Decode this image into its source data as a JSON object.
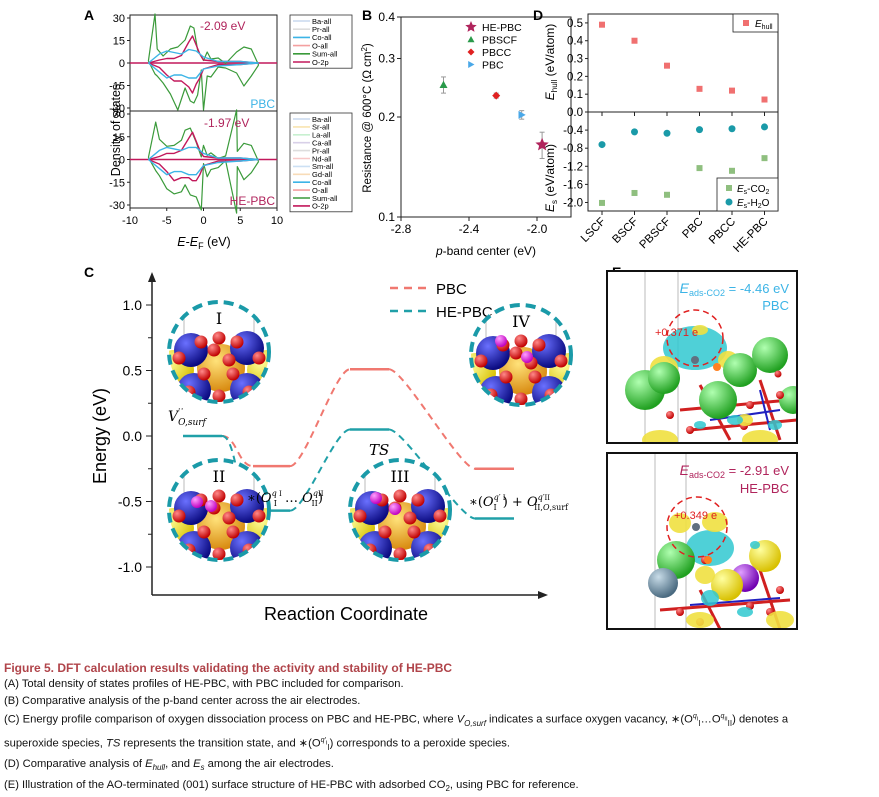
{
  "colors": {
    "pbc_light_blue": "#3cb4e6",
    "he_pbc_magenta": "#b0245c",
    "sum_green": "#3a9a3a",
    "o2p_crimson": "#c2185b",
    "ehull_red": "#f07070",
    "es_co2_green": "#8fbf7f",
    "es_h2o_teal": "#1a9aa8",
    "profile_pbc": "#f07870",
    "profile_he_pbc": "#20a0a8",
    "caption_title": "#b0444a"
  },
  "chart_data": [
    {
      "panel": "A",
      "type": "line",
      "title": "",
      "xlabel": "E-E_F (eV)",
      "ylabel": "Density of states",
      "xlim": [
        -10,
        10
      ],
      "ylim": [
        -30,
        30
      ],
      "xticks": [
        "-10",
        "-5",
        "0",
        "5",
        "10"
      ],
      "yticks": [
        "30",
        "15",
        "0",
        "-15",
        "-30"
      ],
      "subplots": [
        {
          "name": "PBC",
          "pband_annotation": "-2.09 eV",
          "legend": [
            "Ba-all",
            "Pr-all",
            "Co-all",
            "O-all",
            "Sum-all",
            "O-2p"
          ],
          "series": [
            {
              "name": "Sum-all",
              "x": [
                -7.5,
                -6.6,
                -6.3,
                -5.5,
                -4.5,
                -3.5,
                -2.5,
                -1.8,
                -1.3,
                -0.8,
                -0.3,
                0,
                0.5,
                1,
                2,
                3,
                4.5,
                5.5,
                6.5,
                7.5
              ],
              "up": [
                0,
                34,
                8,
                6,
                8,
                12,
                14,
                26,
                22,
                10,
                3,
                3,
                6,
                4,
                2,
                1,
                6,
                12,
                8,
                0
              ],
              "down": [
                0,
                -6,
                -10,
                -12,
                -22,
                -30,
                -18,
                -24,
                -28,
                -20,
                -6,
                -30,
                -10,
                -8,
                -4,
                -2,
                -8,
                -14,
                -10,
                0
              ]
            },
            {
              "name": "O-2p",
              "x": [
                -7.5,
                -6,
                -5,
                -4,
                -3,
                -2,
                -1.5,
                -1,
                -0.5,
                0,
                2,
                5,
                7.5
              ],
              "up": [
                0,
                2,
                3,
                3,
                5,
                14,
                18,
                12,
                6,
                2,
                1,
                1,
                0
              ],
              "down": [
                0,
                -3,
                -8,
                -12,
                -12,
                -16,
                -20,
                -14,
                -10,
                -4,
                -1,
                -1,
                0
              ]
            },
            {
              "name": "Co-all",
              "x": [
                -7.5,
                -6,
                -5,
                -4,
                -3,
                -2,
                -1,
                0,
                2,
                5,
                7.5
              ],
              "up": [
                0,
                6,
                8,
                7,
                6,
                9,
                8,
                4,
                1,
                1,
                0
              ],
              "down": [
                0,
                -6,
                -10,
                -8,
                -8,
                -10,
                -10,
                -4,
                -2,
                -1,
                0
              ]
            }
          ]
        },
        {
          "name": "HE-PBC",
          "pband_annotation": "-1.97 eV",
          "legend": [
            "Ba-all",
            "Sr-all",
            "La-all",
            "Ca-all",
            "Pr-all",
            "Nd-all",
            "Sm-all",
            "Gd-all",
            "Co-all",
            "O-all",
            "Sum-all",
            "O-2p"
          ],
          "series": [
            {
              "name": "Sum-all",
              "x": [
                -7.5,
                -6.5,
                -6,
                -5,
                -4,
                -3,
                -2.5,
                -1.8,
                -1,
                -0.3,
                0,
                0.5,
                1,
                2,
                3,
                4.5,
                4.6,
                5.5,
                6.5,
                7.5
              ],
              "up": [
                0,
                26,
                12,
                10,
                8,
                14,
                18,
                22,
                10,
                3,
                8,
                4,
                3,
                2,
                1,
                34,
                4,
                12,
                8,
                0
              ],
              "down": [
                0,
                -6,
                -12,
                -18,
                -24,
                -20,
                -18,
                -22,
                -26,
                -32,
                -4,
                -10,
                -8,
                -4,
                -2,
                -34,
                -6,
                -12,
                -10,
                0
              ]
            },
            {
              "name": "O-2p",
              "x": [
                -7.5,
                -6,
                -5,
                -4,
                -3,
                -2,
                -1.5,
                -1,
                -0.5,
                0,
                2,
                5,
                7.5
              ],
              "up": [
                0,
                2,
                4,
                4,
                6,
                14,
                18,
                12,
                6,
                2,
                1,
                1,
                0
              ],
              "down": [
                0,
                -3,
                -8,
                -14,
                -12,
                -12,
                -14,
                -14,
                -10,
                -4,
                -1,
                -1,
                0
              ]
            },
            {
              "name": "Co-all",
              "x": [
                -7.5,
                -6,
                -5,
                -4,
                -3,
                -2,
                -1,
                0,
                2,
                5,
                7.5
              ],
              "up": [
                0,
                6,
                8,
                7,
                6,
                8,
                8,
                4,
                1,
                1,
                0
              ],
              "down": [
                0,
                -6,
                -10,
                -8,
                -8,
                -10,
                -10,
                -4,
                -2,
                -1,
                0
              ]
            }
          ]
        }
      ]
    },
    {
      "panel": "B",
      "type": "scatter",
      "xlabel": "p-band center (eV)",
      "ylabel": "Resistance @ 600°C (Ω cm²)",
      "xlim": [
        -2.8,
        -1.8
      ],
      "ylim": [
        0.1,
        0.4
      ],
      "yscale": "log",
      "xticks": [
        "-2.8",
        "-2.4",
        "-2.0"
      ],
      "yticks": [
        "0.4",
        "0.3",
        "0.2",
        "0.1"
      ],
      "legend_position": "top-right",
      "points": [
        {
          "name": "HE-PBC",
          "x": -1.97,
          "y": 0.165,
          "err": 0.015,
          "marker": "star"
        },
        {
          "name": "PBSCF",
          "x": -2.55,
          "y": 0.25,
          "err": 0.014,
          "marker": "triangle-up"
        },
        {
          "name": "PBCC",
          "x": -2.24,
          "y": 0.232,
          "err": 0.004,
          "marker": "diamond"
        },
        {
          "name": "PBC",
          "x": -2.09,
          "y": 0.203,
          "err": 0.006,
          "marker": "triangle-right"
        }
      ]
    },
    {
      "panel": "D",
      "type": "scatter",
      "categories": [
        "LSCF",
        "BSCF",
        "PBSCF",
        "PBC",
        "PBCC",
        "HE-PBC"
      ],
      "top": {
        "ylabel": "E_hull (eV/atom)",
        "ylim": [
          0.0,
          0.55
        ],
        "yticks": [
          "0.5",
          "0.4",
          "0.3",
          "0.2",
          "0.1",
          "0.0"
        ],
        "legend_position": "top-right",
        "series": [
          {
            "name": "E_hull",
            "values": [
              0.49,
              0.4,
              0.26,
              0.13,
              0.12,
              0.07
            ]
          }
        ]
      },
      "bottom": {
        "ylabel": "E_s (eV/atom)",
        "ylim": [
          -2.1,
          0.0
        ],
        "yticks": [
          "-0.4",
          "-0.8",
          "-1.2",
          "-1.6",
          "-2.0"
        ],
        "legend_position": "bottom-right",
        "series": [
          {
            "name": "E_s-CO2",
            "values": [
              -2.01,
              -1.79,
              -1.83,
              -1.24,
              -1.3,
              -1.02
            ]
          },
          {
            "name": "E_s-H2O",
            "values": [
              -0.72,
              -0.44,
              -0.47,
              -0.39,
              -0.37,
              -0.33
            ]
          }
        ]
      }
    },
    {
      "panel": "C",
      "type": "line",
      "xlabel": "Reaction Coordinate",
      "ylabel": "Energy (eV)",
      "ylim": [
        -1.2,
        1.2
      ],
      "yticks": [
        "1.0",
        "0.5",
        "0.0",
        "-0.5",
        "-1.0"
      ],
      "legend_position": "top-center",
      "states": [
        "V_O,surf",
        "*(O_I^qI ... O_II^qII)",
        "TS",
        "*(O_I^q'I) + O_II,O,surf^q'II"
      ],
      "series": [
        {
          "name": "PBC",
          "values": [
            0.0,
            -0.23,
            0.51,
            -0.25
          ]
        },
        {
          "name": "HE-PBC",
          "values": [
            0.0,
            -0.57,
            0.05,
            -0.63
          ]
        }
      ],
      "structure_labels": [
        "I",
        "II",
        "III",
        "IV"
      ]
    }
  ],
  "panel_labels": {
    "a": "A",
    "b": "B",
    "c": "C",
    "d": "D",
    "e": "E"
  },
  "panelE": {
    "top": {
      "energy_label": "E",
      "energy_sub": "ads-CO2",
      "energy_value": " = -4.46 eV",
      "material": "PBC",
      "charge": "+0.371 e"
    },
    "bottom": {
      "energy_label": "E",
      "energy_sub": "ads-CO2",
      "energy_value": " = -2.91 eV",
      "material": "HE-PBC",
      "charge": "+0.349 e"
    }
  },
  "caption": {
    "title": "Figure 5.  DFT calculation results validating the activity and stability of HE-PBC",
    "a": "(A) Total density of states profiles of HE-PBC, with PBC included for comparison.",
    "b": "(B) Comparative analysis of the p-band center across the air electrodes.",
    "c1_pre": "(C) Energy profile comparison of oxygen dissociation process on PBC and HE-PBC, where ",
    "c1_v": "V",
    "c1_vsub": "O,surf",
    "c1_mid": " indicates a surface oxygen vacancy, ",
    "c1_sup": "∗(O",
    "c1_sup2": "I",
    "c1_sup3": "…O",
    "c1_sup4": "II",
    "c1_post": ") denotes a",
    "c2_pre": "superoxide species, ",
    "c2_ts": "TS",
    "c2_mid": " represents the transition state, and ",
    "c2_sym": "∗(O",
    "c2_sym2": "I",
    "c2_post": ") corresponds to a peroxide species.",
    "d_pre": "(D) Comparative analysis of ",
    "d_e1": "E",
    "d_e1sub": "hull",
    "d_mid": ", and ",
    "d_e2": "E",
    "d_e2sub": "s",
    "d_post": " among the air electrodes.",
    "e_pre": "(E) Illustration of the AO-terminated (001) surface structure of HE-PBC with adsorbed CO",
    "e_sub": "2",
    "e_post": ", using PBC for reference."
  }
}
